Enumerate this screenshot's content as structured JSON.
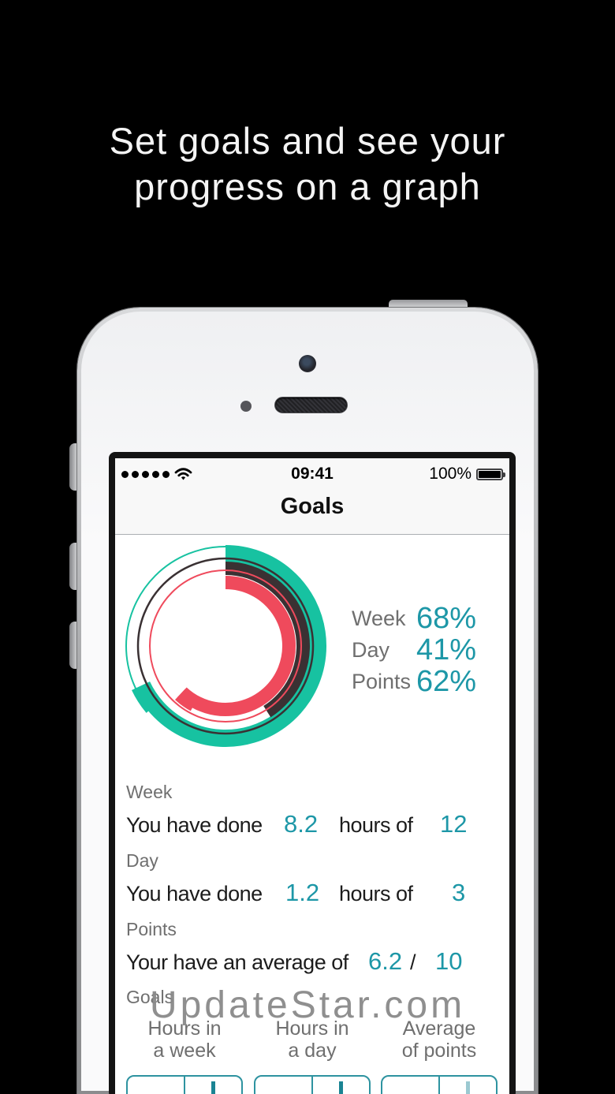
{
  "hero": {
    "title_line1": "Set goals and see your",
    "title_line2": "progress on a graph"
  },
  "status_bar": {
    "signal_dots": 5,
    "wifi_icon": "wifi-icon",
    "time": "09:41",
    "battery_percent": "100%",
    "battery_icon": "battery-full-icon"
  },
  "nav": {
    "title": "Goals"
  },
  "chart_data": {
    "type": "pie",
    "subtype": "concentric progress rings",
    "start_angle": "12 o'clock",
    "direction": "clockwise",
    "legend_position": "right",
    "rings": [
      {
        "label": "Week",
        "percent": 68,
        "color": "#17c2a1"
      },
      {
        "label": "Day",
        "percent": 41,
        "color": "#3a3133"
      },
      {
        "label": "Points",
        "percent": 62,
        "color": "#ef4a5c"
      }
    ],
    "legend": [
      {
        "label": "Week",
        "value": "68%"
      },
      {
        "label": "Day",
        "value": "41%"
      },
      {
        "label": "Points",
        "value": "62%"
      }
    ]
  },
  "stats": {
    "week": {
      "header": "Week",
      "prefix": "You have done",
      "value": "8.2",
      "infix": "hours of",
      "target": "12"
    },
    "day": {
      "header": "Day",
      "prefix": "You have done",
      "value": "1.2",
      "infix": "hours of",
      "target": "3"
    },
    "points": {
      "header": "Points",
      "prefix": "Your have an average of",
      "value": "6.2",
      "separator": "/",
      "target": "10"
    }
  },
  "goals_section": {
    "header": "Goals",
    "columns": [
      {
        "label_line1": "Hours in",
        "label_line2": "a week",
        "minus": "decrement",
        "plus": "increment",
        "plus_enabled": true
      },
      {
        "label_line1": "Hours in",
        "label_line2": "a day",
        "minus": "decrement",
        "plus": "increment",
        "plus_enabled": true
      },
      {
        "label_line1": "Average",
        "label_line2": "of points",
        "minus": "decrement",
        "plus": "increment",
        "plus_enabled": false
      }
    ]
  },
  "watermark": {
    "text": "UpdateStar.com"
  },
  "colors": {
    "teal_text": "#1d97a7",
    "ring_teal": "#17c2a1",
    "ring_dark": "#3a3133",
    "ring_red": "#ef4a5c",
    "gray_label": "#6f6f6f",
    "stepper_border": "#2e93a0",
    "stepper_glyph": "#1a8493",
    "stepper_glyph_disabled": "#9bc9d1"
  }
}
